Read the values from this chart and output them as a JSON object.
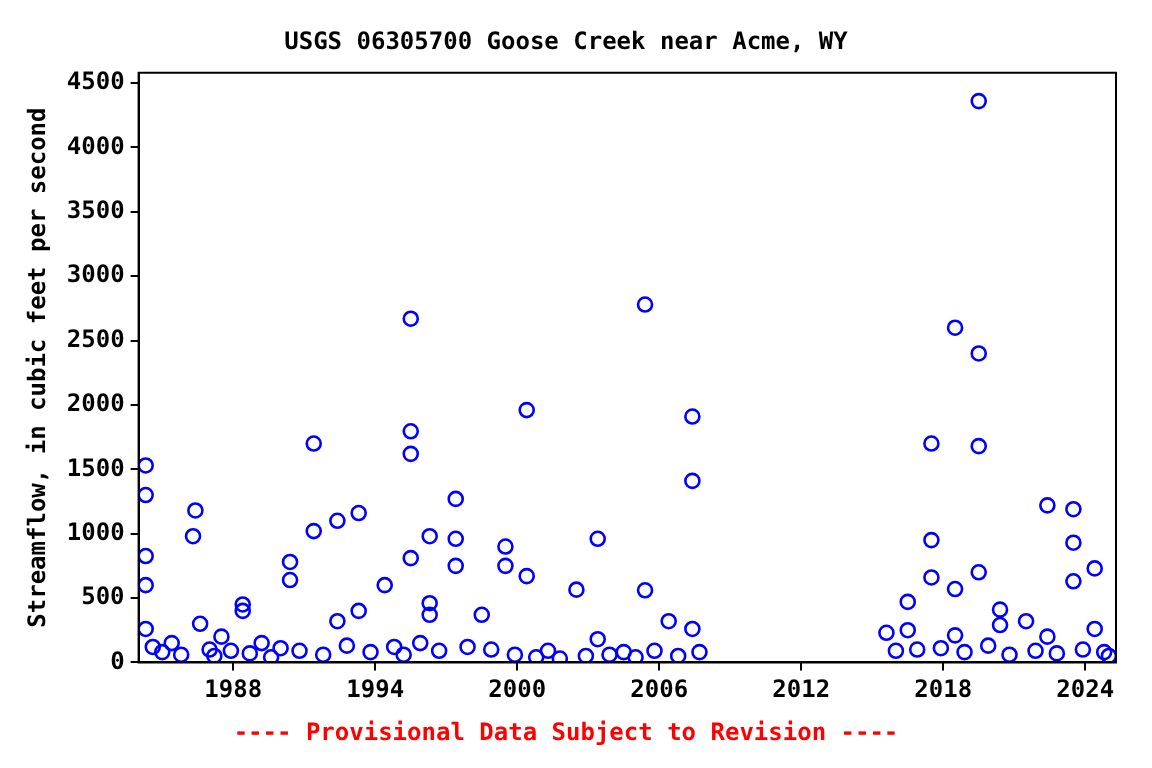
{
  "chart_data": {
    "type": "scatter",
    "title": "USGS 06305700 Goose Creek near Acme, WY",
    "ylabel": "Streamflow, in cubic feet per second",
    "annotations": [
      "---- Provisional Data Subject to Revision ----"
    ],
    "x": [
      1984.3,
      1984.3,
      1984.3,
      1984.3,
      1984.3,
      1984.6,
      1985.0,
      1985.4,
      1985.8,
      1986.3,
      1986.4,
      1986.6,
      1987.0,
      1987.2,
      1987.5,
      1987.9,
      1988.4,
      1988.4,
      1988.7,
      1989.2,
      1989.6,
      1990.0,
      1990.4,
      1990.4,
      1990.8,
      1991.4,
      1991.4,
      1991.8,
      1992.4,
      1992.4,
      1992.8,
      1993.3,
      1993.3,
      1993.8,
      1994.4,
      1994.8,
      1995.2,
      1995.5,
      1995.5,
      1995.5,
      1995.5,
      1995.9,
      1996.3,
      1996.3,
      1996.3,
      1996.7,
      1997.4,
      1997.4,
      1997.4,
      1997.9,
      1998.5,
      1998.9,
      1999.5,
      1999.5,
      1999.9,
      2000.4,
      2000.4,
      2000.8,
      2001.3,
      2001.8,
      2002.5,
      2002.9,
      2003.4,
      2003.4,
      2003.9,
      2004.5,
      2005.0,
      2005.4,
      2005.4,
      2005.8,
      2006.4,
      2006.8,
      2007.4,
      2007.4,
      2007.4,
      2007.7,
      2015.6,
      2016.0,
      2016.5,
      2016.5,
      2016.9,
      2017.5,
      2017.5,
      2017.5,
      2017.9,
      2018.5,
      2018.5,
      2018.5,
      2018.9,
      2019.5,
      2019.5,
      2019.5,
      2019.5,
      2019.9,
      2020.4,
      2020.4,
      2020.8,
      2021.5,
      2021.9,
      2022.4,
      2022.4,
      2022.8,
      2023.5,
      2023.5,
      2023.5,
      2023.9,
      2024.4,
      2024.4,
      2024.8,
      2025.0
    ],
    "values": [
      1530,
      1300,
      826,
      600,
      260,
      120,
      80,
      150,
      60,
      980,
      1180,
      300,
      100,
      50,
      200,
      90,
      450,
      400,
      70,
      150,
      40,
      110,
      640,
      780,
      90,
      1700,
      1020,
      60,
      1100,
      320,
      130,
      1160,
      400,
      80,
      600,
      120,
      60,
      2670,
      1795,
      1620,
      810,
      150,
      980,
      460,
      370,
      90,
      1270,
      960,
      750,
      120,
      370,
      100,
      900,
      750,
      60,
      1960,
      670,
      40,
      90,
      30,
      565,
      50,
      960,
      180,
      60,
      80,
      40,
      2780,
      560,
      90,
      320,
      50,
      1910,
      1410,
      260,
      80,
      230,
      90,
      250,
      470,
      100,
      1700,
      950,
      660,
      110,
      2600,
      570,
      210,
      80,
      4360,
      2400,
      1680,
      700,
      130,
      410,
      290,
      60,
      320,
      90,
      1220,
      200,
      70,
      1190,
      930,
      630,
      100,
      730,
      260,
      80,
      50
    ],
    "color": "#0000ff",
    "marker": "circle",
    "xlim": [
      1984,
      2025.3
    ],
    "xticks": [
      1988,
      1994,
      2000,
      2006,
      2012,
      2018,
      2024
    ],
    "ylim": [
      0,
      4580
    ],
    "yticks": [
      0,
      500,
      1000,
      1500,
      2000,
      2500,
      3000,
      3500,
      4000,
      4500
    ],
    "grid": false,
    "legend": false
  }
}
